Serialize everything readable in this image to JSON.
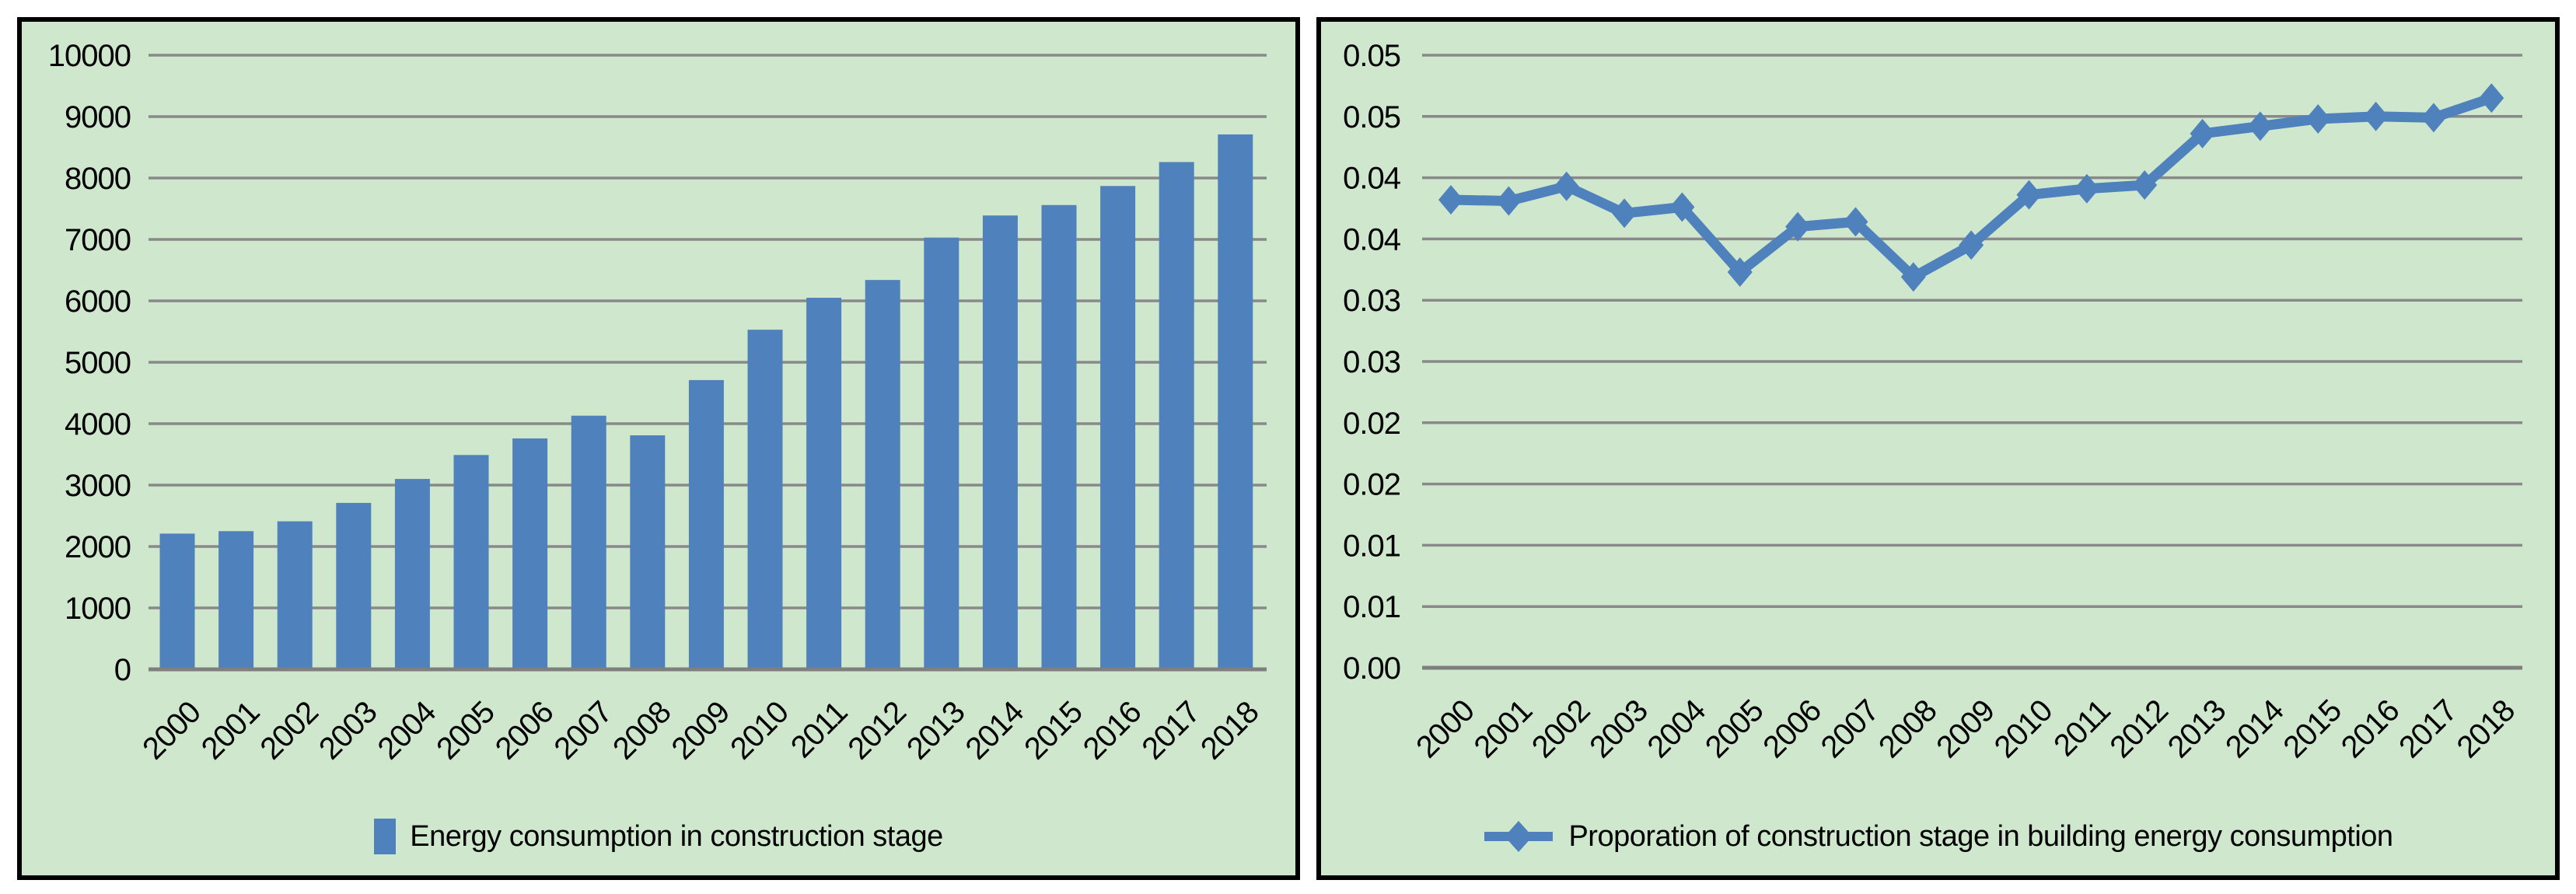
{
  "colors": {
    "series_blue": "#4f81bd",
    "panel_background": "#cfe8cd",
    "gridline": "#898989",
    "axis_line": "#7f7f7f",
    "text": "#000000",
    "panel_border": "#000000",
    "page_background": "#ffffff"
  },
  "chart_data": [
    {
      "type": "bar",
      "title": "",
      "categories": [
        "2000",
        "2001",
        "2002",
        "2003",
        "2004",
        "2005",
        "2006",
        "2007",
        "2008",
        "2009",
        "2010",
        "2011",
        "2012",
        "2013",
        "2014",
        "2015",
        "2016",
        "2017",
        "2018"
      ],
      "values": [
        2210,
        2250,
        2410,
        2710,
        3100,
        3490,
        3760,
        4130,
        3810,
        4710,
        5530,
        6050,
        6340,
        7030,
        7390,
        7560,
        7870,
        8260,
        8710
      ],
      "xlabel": "",
      "ylabel": "",
      "ylim": [
        0,
        10000
      ],
      "ytick_step": 1000,
      "ytick_labels": [
        "0",
        "1000",
        "2000",
        "3000",
        "4000",
        "5000",
        "6000",
        "7000",
        "8000",
        "9000",
        "10000"
      ],
      "grid": true,
      "legend": "Energy consumption in construction stage",
      "legend_position": "bottom",
      "series_color": "#4f81bd"
    },
    {
      "type": "line",
      "title": "",
      "categories": [
        "2000",
        "2001",
        "2002",
        "2003",
        "2004",
        "2005",
        "2006",
        "2007",
        "2008",
        "2009",
        "2010",
        "2011",
        "2012",
        "2013",
        "2014",
        "2015",
        "2016",
        "2017",
        "2018"
      ],
      "values": [
        0.0382,
        0.0381,
        0.0393,
        0.0371,
        0.0376,
        0.0323,
        0.036,
        0.0364,
        0.0319,
        0.0345,
        0.0386,
        0.0391,
        0.0394,
        0.0436,
        0.0442,
        0.0448,
        0.045,
        0.0449,
        0.0465
      ],
      "xlabel": "",
      "ylabel": "",
      "ylim": [
        0,
        0.05
      ],
      "ytick_step": 0.005,
      "ytick_labels": [
        "0.00",
        "0.01",
        "0.01",
        "0.02",
        "0.02",
        "0.03",
        "0.03",
        "0.04",
        "0.04",
        "0.05",
        "0.05"
      ],
      "grid": true,
      "legend": "Proporation of construction stage in building energy consumption",
      "legend_position": "bottom",
      "marker": "diamond",
      "series_color": "#4f81bd"
    }
  ]
}
